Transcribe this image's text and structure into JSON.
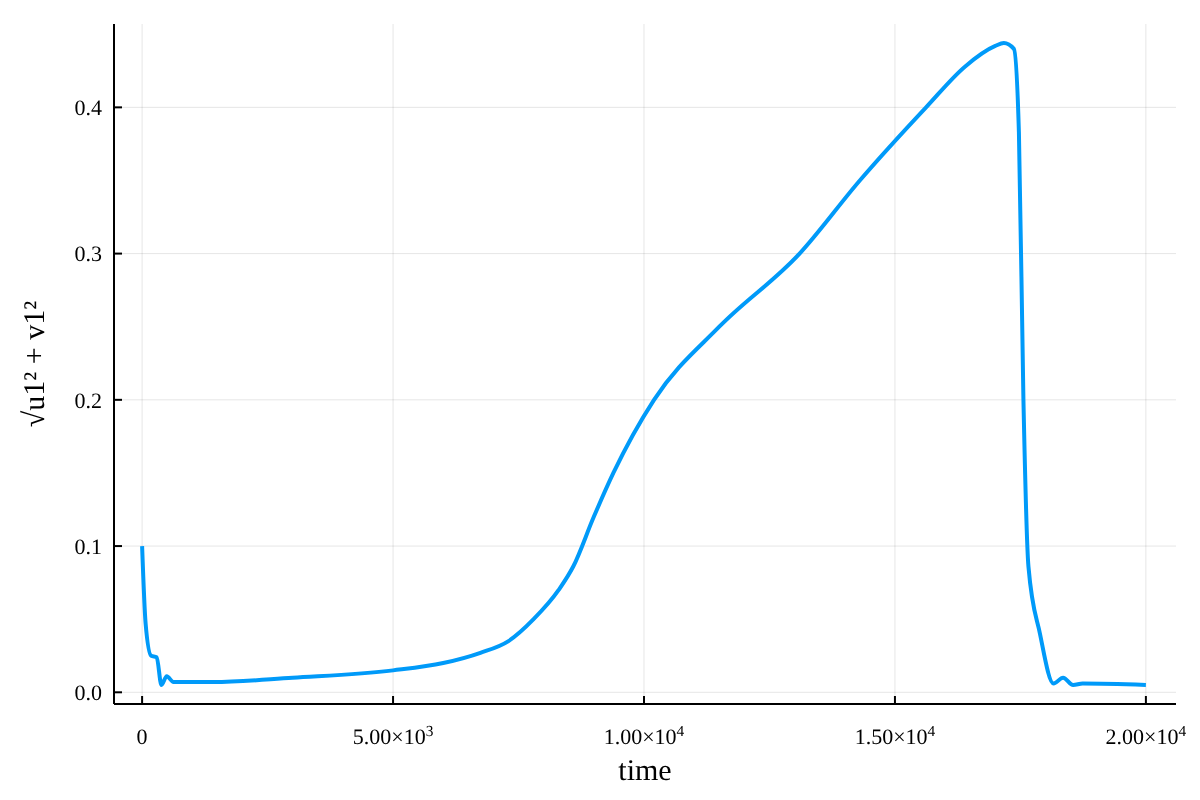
{
  "chart_data": {
    "type": "line",
    "xlabel": "time",
    "ylabel": "√u1² + v1²",
    "series": [
      {
        "color": "#009af9",
        "x": [
          0,
          70,
          180,
          290,
          385,
          490,
          625,
          1000,
          1420,
          3000,
          5000,
          6000,
          6740,
          7300,
          7800,
          8300,
          8590,
          9000,
          9390,
          10200,
          11500,
          13100,
          14300,
          15620,
          16400,
          17000,
          17170,
          17370,
          17470,
          17560,
          17660,
          17890,
          18160,
          18350,
          18550,
          18740,
          20000
        ],
        "values": [
          0.1,
          0.047,
          0.025,
          0.024,
          0.005,
          0.011,
          0.007,
          0.007,
          0.007,
          0.01,
          0.015,
          0.02,
          0.027,
          0.035,
          0.05,
          0.07,
          0.086,
          0.12,
          0.15,
          0.2,
          0.25,
          0.3,
          0.35,
          0.4,
          0.428,
          0.442,
          0.444,
          0.44,
          0.383,
          0.2,
          0.086,
          0.04,
          0.006,
          0.01,
          0.005,
          0.006,
          0.005
        ]
      }
    ],
    "xlim": [
      -560,
      20600
    ],
    "ylim": [
      -0.008,
      0.457
    ],
    "xticks": [
      0,
      {
        "value": 5000,
        "label": "5.00×10$^{3}$"
      },
      {
        "value": 10000,
        "label": "1.00×10$^{4}$"
      },
      {
        "value": 15000,
        "label": "1.50×10$^{4}$"
      },
      {
        "value": 20000,
        "label": "2.00×10$^{4}$"
      }
    ],
    "yticks": [
      {
        "value": 0,
        "label": "0.0"
      },
      0.1,
      0.2,
      0.3,
      0.4
    ],
    "grid": true,
    "line_style": "solid",
    "marker": "none"
  }
}
